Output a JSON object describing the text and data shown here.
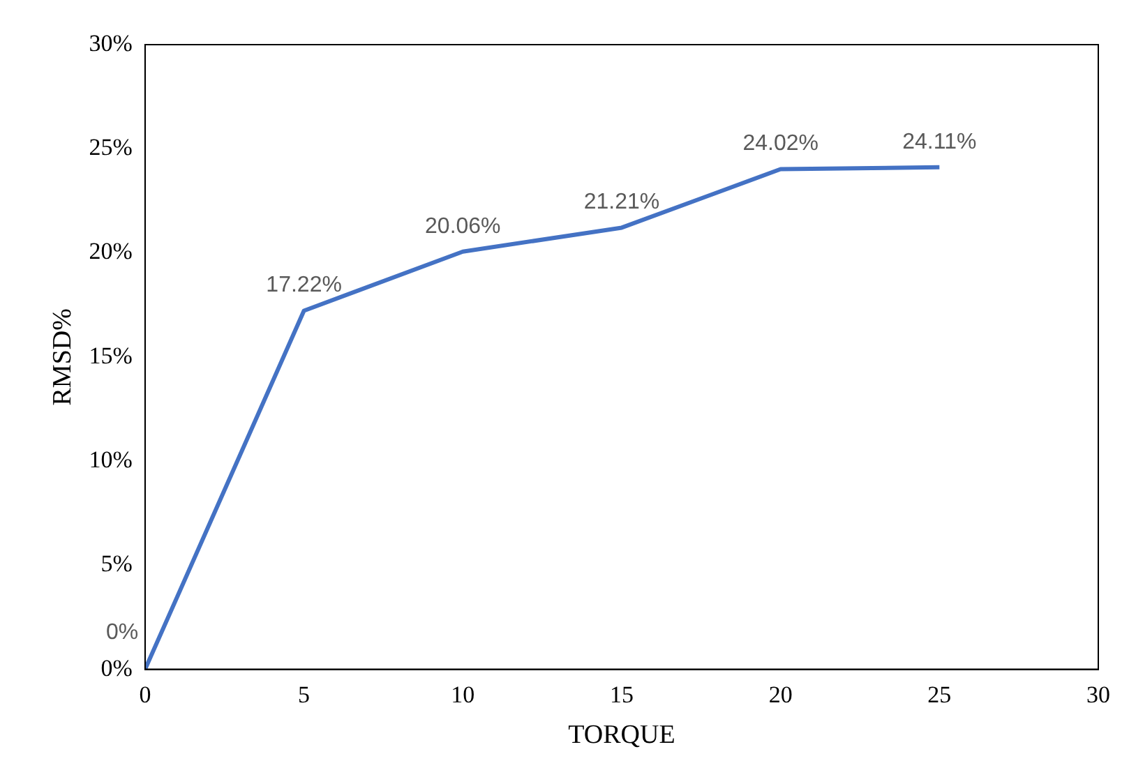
{
  "chart_data": {
    "type": "line",
    "xlabel": "TORQUE",
    "ylabel": "RMSD%",
    "x": [
      0,
      5,
      10,
      15,
      20,
      25
    ],
    "series": [
      {
        "color": "#4472c4",
        "values": [
          0,
          17.22,
          20.06,
          21.21,
          24.02,
          24.11
        ],
        "value_labels": [
          "0%",
          "17.22%",
          "20.06%",
          "21.21%",
          "24.02%",
          "24.11%"
        ]
      }
    ],
    "xlim": [
      0,
      30
    ],
    "xticks": [
      0,
      5,
      10,
      15,
      20,
      25,
      30
    ],
    "ylim": [
      0,
      30
    ],
    "yticks": [
      {
        "value": 0,
        "label": "0%"
      },
      {
        "value": 5,
        "label": "5%"
      },
      {
        "value": 10,
        "label": "10%"
      },
      {
        "value": 15,
        "label": "15%"
      },
      {
        "value": 20,
        "label": "20%"
      },
      {
        "value": 25,
        "label": "25%"
      },
      {
        "value": 30,
        "label": "30%"
      }
    ],
    "grid": false
  }
}
